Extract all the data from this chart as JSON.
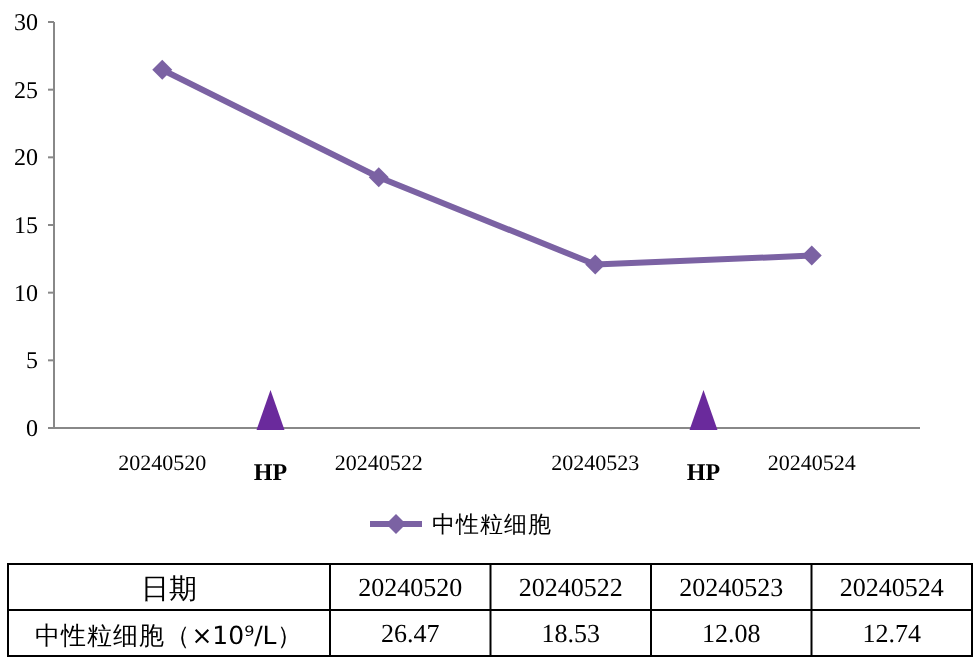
{
  "chart_data": {
    "type": "line",
    "categories": [
      "20240520",
      "20240522",
      "20240523",
      "20240524"
    ],
    "series": [
      {
        "name": "中性粒细胞",
        "color": "#7b62a3",
        "values": [
          26.47,
          18.53,
          12.08,
          12.74
        ]
      }
    ],
    "ylim": [
      0,
      30
    ],
    "yticks": [
      0,
      5,
      10,
      15,
      20,
      25,
      30
    ],
    "marker": "diamond",
    "grid": false,
    "legend": "bottom",
    "annotations": [
      "HP",
      "HP",
      "日期",
      "中性粒细胞（×10⁹/L）",
      "26.47",
      "18.53",
      "12.08",
      "12.74"
    ]
  }
}
